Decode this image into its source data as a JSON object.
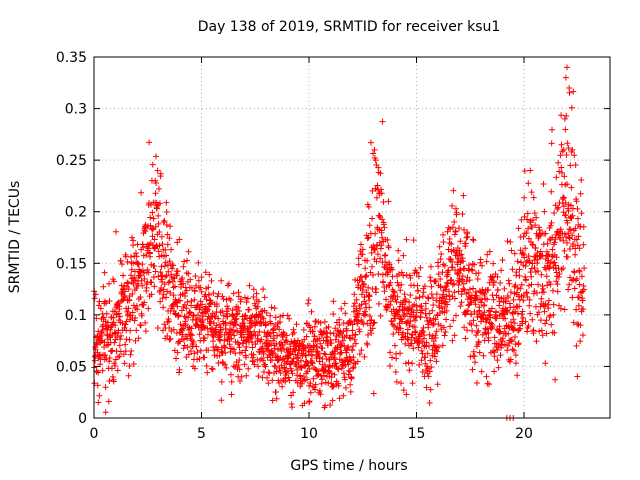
{
  "chart_data": {
    "type": "scatter",
    "title": "Day 138 of 2019, SRMTID for receiver ksu1",
    "xlabel": "GPS time / hours",
    "ylabel": "SRMTID / TECUs",
    "xlim": [
      0,
      24
    ],
    "ylim": [
      0,
      0.35
    ],
    "grid": true,
    "marker": "+",
    "color": "#ff0000",
    "xticks": [
      0,
      5,
      10,
      15,
      20
    ],
    "xtick_labels": [
      "0",
      "5",
      "10",
      "15",
      "20"
    ],
    "yticks": [
      0,
      0.05,
      0.1,
      0.15,
      0.2,
      0.25,
      0.3,
      0.35
    ],
    "ytick_labels": [
      "0",
      "0.05",
      "0.1",
      "0.15",
      "0.2",
      "0.25",
      "0.3",
      "0.35"
    ],
    "series": [
      {
        "name": "SRMTID",
        "x_start": 0,
        "x_end": 22.8,
        "trend": [
          [
            0.0,
            0.08
          ],
          [
            0.5,
            0.08
          ],
          [
            1.0,
            0.09
          ],
          [
            1.5,
            0.11
          ],
          [
            2.0,
            0.13
          ],
          [
            2.5,
            0.15
          ],
          [
            2.8,
            0.18
          ],
          [
            3.2,
            0.14
          ],
          [
            3.5,
            0.12
          ],
          [
            4.0,
            0.1
          ],
          [
            5.0,
            0.09
          ],
          [
            6.0,
            0.08
          ],
          [
            7.0,
            0.08
          ],
          [
            7.5,
            0.09
          ],
          [
            8.0,
            0.07
          ],
          [
            9.0,
            0.06
          ],
          [
            10.0,
            0.06
          ],
          [
            11.0,
            0.06
          ],
          [
            12.0,
            0.07
          ],
          [
            12.5,
            0.11
          ],
          [
            13.0,
            0.15
          ],
          [
            13.2,
            0.2
          ],
          [
            13.5,
            0.15
          ],
          [
            14.0,
            0.1
          ],
          [
            15.0,
            0.09
          ],
          [
            15.5,
            0.07
          ],
          [
            16.0,
            0.11
          ],
          [
            16.5,
            0.14
          ],
          [
            17.0,
            0.14
          ],
          [
            17.5,
            0.12
          ],
          [
            18.0,
            0.1
          ],
          [
            18.5,
            0.1
          ],
          [
            19.0,
            0.09
          ],
          [
            19.5,
            0.11
          ],
          [
            20.0,
            0.14
          ],
          [
            20.5,
            0.15
          ],
          [
            21.0,
            0.15
          ],
          [
            21.5,
            0.17
          ],
          [
            22.0,
            0.2
          ],
          [
            22.5,
            0.16
          ],
          [
            22.8,
            0.12
          ]
        ],
        "spread": [
          [
            0.0,
            0.035
          ],
          [
            2.0,
            0.04
          ],
          [
            3.0,
            0.05
          ],
          [
            5.0,
            0.03
          ],
          [
            9.0,
            0.025
          ],
          [
            12.0,
            0.03
          ],
          [
            13.0,
            0.06
          ],
          [
            14.0,
            0.035
          ],
          [
            17.0,
            0.04
          ],
          [
            19.0,
            0.035
          ],
          [
            20.0,
            0.05
          ],
          [
            22.0,
            0.07
          ],
          [
            22.8,
            0.05
          ]
        ],
        "peaks": [
          {
            "x": 2.85,
            "y": 0.23
          },
          {
            "x": 13.05,
            "y": 0.26
          },
          {
            "x": 13.1,
            "y": 0.25
          },
          {
            "x": 22.0,
            "y": 0.34
          },
          {
            "x": 21.95,
            "y": 0.33
          },
          {
            "x": 22.1,
            "y": 0.32
          },
          {
            "x": 21.9,
            "y": 0.29
          },
          {
            "x": 22.25,
            "y": 0.26
          },
          {
            "x": 0.2,
            "y": 0.015
          },
          {
            "x": 10.75,
            "y": 0.012
          },
          {
            "x": 19.2,
            "y": 0.0
          },
          {
            "x": 19.35,
            "y": 0.0
          },
          {
            "x": 19.5,
            "y": 0.0
          }
        ],
        "approx_point_count": 2600
      }
    ]
  }
}
